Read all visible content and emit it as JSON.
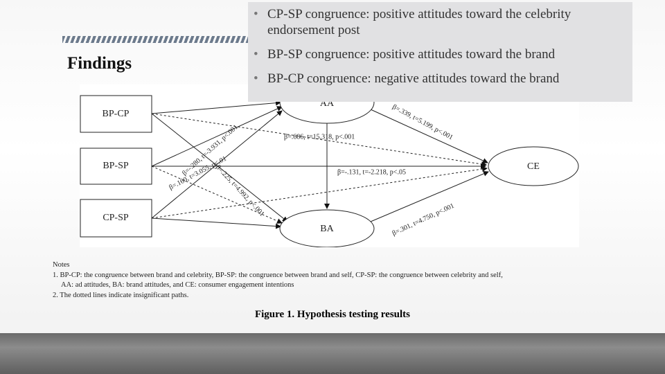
{
  "title": "Findings",
  "bullets": [
    "CP-SP congruence: positive attitudes toward the celebrity endorsement post",
    "BP-SP congruence: positive attitudes toward the brand",
    "BP-CP congruence: negative attitudes toward the brand"
  ],
  "diagram": {
    "nodes": [
      "BP-CP",
      "BP-SP",
      "CP-SP",
      "AA",
      "BA",
      "CE"
    ],
    "edge_labels": [
      "β=-.280, t=-3.931, p<.001",
      "β=.686, t=15.318, p<.001",
      "β=.339, t=5.199, p<.001",
      "β=-.131, t=-2.218, p<.05",
      "β=.225, t=4.992, p<.001",
      "β=.160, t=3.055, p<.01",
      "β=.301, t=4.750, p<.001"
    ]
  },
  "notes": [
    "Notes",
    "1. BP-CP: the congruence between brand and celebrity, BP-SP: the congruence between brand and self, CP-SP: the congruence between celebrity and self,",
    "AA: ad attitudes, BA: brand attitudes, and CE: consumer engagement intentions",
    "2. The dotted lines indicate insignificant paths."
  ],
  "caption": "Figure 1. Hypothesis testing results"
}
